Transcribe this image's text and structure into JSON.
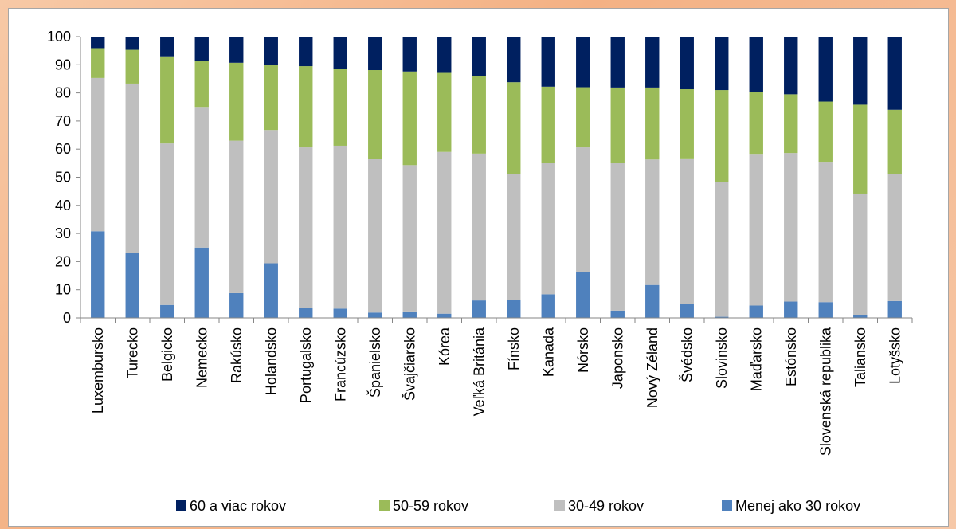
{
  "chart_data": {
    "type": "bar",
    "stacked": true,
    "ylim": [
      0,
      100
    ],
    "yticks": [
      0,
      10,
      20,
      30,
      40,
      50,
      60,
      70,
      80,
      90,
      100
    ],
    "grid": false,
    "legend_position": "bottom",
    "categories": [
      "Luxembursko",
      "Turecko",
      "Belgicko",
      "Nemecko",
      "Rakúsko",
      "Holandsko",
      "Portugalsko",
      "Francúzsko",
      "Španielsko",
      "Švajčiarsko",
      "Kórea",
      "Veľká Británia",
      "Fínsko",
      "Kanada",
      "Nórsko",
      "Japonsko",
      "Nový Zéland",
      "Švédsko",
      "Slovinsko",
      "Maďarsko",
      "Estónsko",
      "Slovenská republika",
      "Taliansko",
      "Lotyšsko"
    ],
    "series": [
      {
        "name": "Menej ako 30 rokov",
        "color": "#4f81bd",
        "values": [
          30.8,
          23.0,
          4.6,
          25.0,
          8.8,
          19.4,
          3.5,
          3.3,
          1.9,
          2.3,
          1.5,
          6.2,
          6.4,
          8.4,
          16.2,
          2.6,
          11.7,
          4.9,
          0.4,
          4.4,
          5.8,
          5.6,
          0.9,
          6.0
        ]
      },
      {
        "name": "30-49 rokov",
        "color": "#bfbfbf",
        "values": [
          54.5,
          60.3,
          57.4,
          50.0,
          54.2,
          47.4,
          57.1,
          57.9,
          54.5,
          52.0,
          57.5,
          52.2,
          44.6,
          46.6,
          44.4,
          52.4,
          44.6,
          51.8,
          47.8,
          53.9,
          52.8,
          49.9,
          43.3,
          45.1
        ]
      },
      {
        "name": "50-59 rokov",
        "color": "#9bbb59",
        "values": [
          10.6,
          12.0,
          31.0,
          16.3,
          27.7,
          23.0,
          28.9,
          27.3,
          31.7,
          33.3,
          28.1,
          27.7,
          32.8,
          27.2,
          21.4,
          26.9,
          25.6,
          24.6,
          32.8,
          22.0,
          20.9,
          21.4,
          31.6,
          22.9
        ]
      },
      {
        "name": "60 a viac rokov",
        "color": "#002060",
        "values": [
          4.1,
          4.7,
          7.0,
          8.7,
          9.3,
          10.2,
          10.5,
          11.5,
          11.9,
          12.4,
          12.9,
          13.9,
          16.2,
          17.8,
          18.0,
          18.1,
          18.1,
          18.7,
          19.0,
          19.7,
          20.5,
          23.1,
          24.2,
          26.0
        ]
      }
    ],
    "legend_order": [
      "60 a viac rokov",
      "50-59 rokov",
      "30-49 rokov",
      "Menej ako 30 rokov"
    ]
  }
}
